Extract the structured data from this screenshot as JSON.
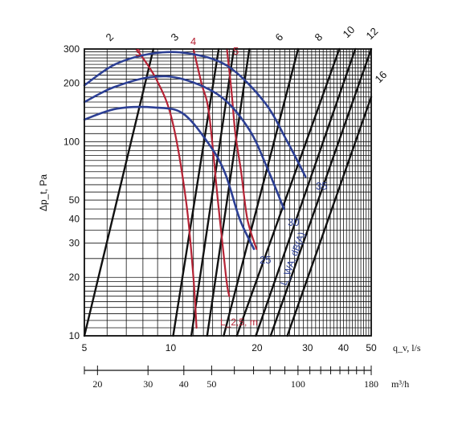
{
  "chart_data": {
    "type": "line",
    "title": "",
    "xlabel": "q_v, l/s",
    "ylabel": "Δp_t, Pa",
    "x_scale": "log",
    "y_scale": "log",
    "xlim": [
      5,
      50
    ],
    "ylim": [
      10,
      300
    ],
    "grid": true,
    "x_ticks": [
      "5",
      "10",
      "20",
      "30",
      "40",
      "50"
    ],
    "y_ticks": [
      "10",
      "20",
      "30",
      "40",
      "50",
      "100",
      "200",
      "300"
    ],
    "secondary_axis": {
      "label": "m³/h",
      "ticks": [
        "20",
        "30",
        "40",
        "50",
        "100",
        "180"
      ]
    },
    "series_groups": [
      {
        "name": "",
        "color": "#111111",
        "series": [
          {
            "name": "2",
            "x": [
              5.0,
              8.7
            ],
            "y": [
              10,
              300
            ]
          },
          {
            "name": "3",
            "x": [
              10.2,
              14.7
            ],
            "y": [
              10,
              300
            ]
          },
          {
            "name": "4",
            "x": [
              11.8,
              16.6
            ],
            "y": [
              10,
              300
            ]
          },
          {
            "name": "5",
            "x": [
              13.4,
              18.8
            ],
            "y": [
              10,
              300
            ]
          },
          {
            "name": "6",
            "x": [
              15.3,
              27.8
            ],
            "y": [
              10,
              300
            ]
          },
          {
            "name": "8",
            "x": [
              17.0,
              38.7
            ],
            "y": [
              10,
              300
            ]
          },
          {
            "name": "10",
            "x": [
              19.8,
              44.0
            ],
            "y": [
              10,
              300
            ]
          },
          {
            "name": "12",
            "x": [
              22.3,
              50.0
            ],
            "y": [
              10,
              300
            ]
          },
          {
            "name": "16",
            "x": [
              25.5,
              50.0
            ],
            "y": [
              10,
              170
            ]
          }
        ]
      },
      {
        "name": "L_2,5, m",
        "color": "#b52335",
        "series": [
          {
            "name": "3",
            "x": [
              7.6,
              8.9,
              10.1,
              11.3,
              12.0,
              12.3
            ],
            "y": [
              300,
              210,
              130,
              50,
              20,
              11
            ]
          },
          {
            "name": "4",
            "x": [
              12.0,
              12.8,
              13.6,
              14.6,
              15.6,
              16.0
            ],
            "y": [
              300,
              200,
              140,
              50,
              20,
              16
            ]
          },
          {
            "name": "5",
            "x": [
              15.7,
              16.3,
              16.8,
              17.6,
              18.5,
              19.9
            ],
            "y": [
              300,
              180,
              110,
              70,
              40,
              28
            ]
          }
        ]
      },
      {
        "name": "L_WA, dB(A)",
        "color": "#2c3f94",
        "series": [
          {
            "name": "35",
            "x": [
              5.0,
              6.4,
              8.7,
              11.5,
              15.8,
              21.2,
              25.5,
              29.5
            ],
            "y": [
              195,
              250,
              285,
              285,
              245,
              160,
              100,
              66
            ]
          },
          {
            "name": "30",
            "x": [
              5.0,
              6.3,
              8.5,
              11.0,
              15.0,
              18.8,
              21.8,
              24.8
            ],
            "y": [
              160,
              190,
              215,
              210,
              170,
              115,
              72,
              45
            ]
          },
          {
            "name": "25",
            "x": [
              5.0,
              6.5,
              8.8,
              11.0,
              13.4,
              15.4,
              17.4,
              19.5
            ],
            "y": [
              130,
              148,
              150,
              140,
              100,
              70,
              40,
              28
            ]
          }
        ]
      }
    ],
    "annotations": [
      {
        "text": "2",
        "group": "black"
      },
      {
        "text": "3",
        "group": "black"
      },
      {
        "text": "4",
        "group": "red"
      },
      {
        "text": "5",
        "group": "red"
      },
      {
        "text": "6",
        "group": "black"
      },
      {
        "text": "8",
        "group": "black"
      },
      {
        "text": "10",
        "group": "black"
      },
      {
        "text": "12",
        "group": "black"
      },
      {
        "text": "16",
        "group": "black"
      },
      {
        "text": "3",
        "group": "red"
      },
      {
        "text": "35",
        "group": "blue"
      },
      {
        "text": "30",
        "group": "blue"
      },
      {
        "text": "25",
        "group": "blue"
      },
      {
        "text": "L_WA, dB(A)",
        "group": "blue"
      },
      {
        "text": "L_2,5, m",
        "group": "red"
      }
    ]
  }
}
